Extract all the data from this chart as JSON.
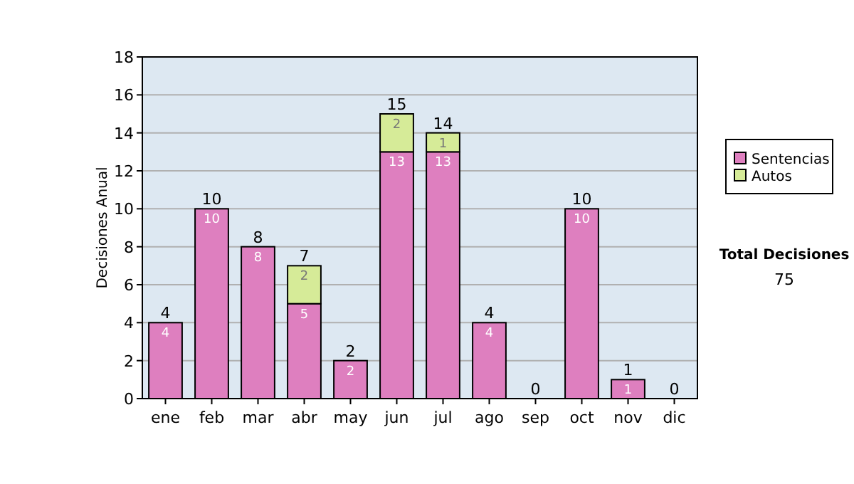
{
  "chart_data": {
    "type": "bar",
    "stacked": true,
    "ylabel": "Decisiones Anual",
    "categories": [
      "ene",
      "feb",
      "mar",
      "abr",
      "may",
      "jun",
      "jul",
      "ago",
      "sep",
      "oct",
      "nov",
      "dic"
    ],
    "series": [
      {
        "name": "Sentencias",
        "color": "#de7fbf",
        "values": [
          4,
          10,
          8,
          5,
          2,
          13,
          13,
          4,
          0,
          10,
          1,
          0
        ],
        "value_labels": [
          "4",
          "10",
          "8",
          "5",
          "2",
          "13",
          "13",
          "4",
          null,
          "10",
          "1",
          null
        ]
      },
      {
        "name": "Autos",
        "color": "#d6eb98",
        "values": [
          0,
          0,
          0,
          2,
          0,
          2,
          1,
          0,
          0,
          0,
          0,
          0
        ],
        "value_labels": [
          null,
          null,
          null,
          "2",
          null,
          "2",
          "1",
          null,
          null,
          null,
          null,
          null
        ]
      }
    ],
    "totals": [
      "4",
      "10",
      "8",
      "7",
      "2",
      "15",
      "14",
      "4",
      "0",
      "10",
      "1",
      "0"
    ],
    "ylim": [
      0,
      18
    ],
    "yticks": [
      0,
      2,
      4,
      6,
      8,
      10,
      12,
      14,
      16,
      18
    ],
    "grid": "y",
    "legend": "right",
    "annotations": [
      "Total Decisiones",
      "75"
    ]
  }
}
